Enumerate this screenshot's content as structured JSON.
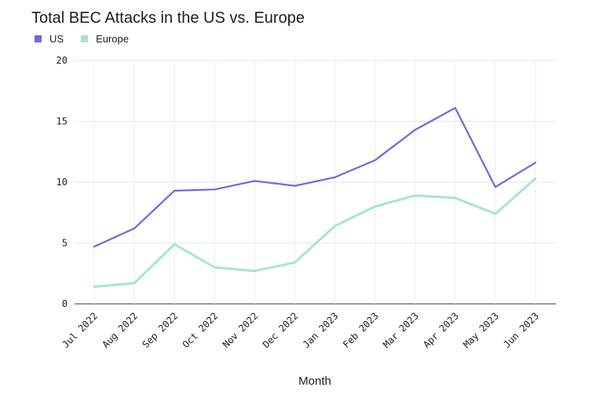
{
  "chart_data": {
    "type": "line",
    "title": "Total BEC Attacks in the US vs. Europe",
    "xlabel": "Month",
    "ylabel": "",
    "ylim": [
      0,
      20
    ],
    "yticks": [
      "0",
      "5",
      "10",
      "15",
      "20"
    ],
    "categories": [
      "Jul 2022",
      "Aug 2022",
      "Sep 2022",
      "Oct 2022",
      "Nov 2022",
      "Dec 2022",
      "Jan 2023",
      "Feb 2023",
      "Mar 2023",
      "Apr 2023",
      "May 2023",
      "Jun 2023"
    ],
    "series": [
      {
        "name": "US",
        "color": "#7166e0",
        "values": [
          4.7,
          6.2,
          9.3,
          9.4,
          10.1,
          9.7,
          10.4,
          11.8,
          14.3,
          16.1,
          9.6,
          11.6
        ]
      },
      {
        "name": "Europe",
        "color": "#a8e3d5",
        "values": [
          1.4,
          1.7,
          4.9,
          3.0,
          2.7,
          3.4,
          6.4,
          8.0,
          8.9,
          8.7,
          7.4,
          10.3
        ]
      }
    ],
    "grid": true,
    "legend_position": "top-left"
  }
}
